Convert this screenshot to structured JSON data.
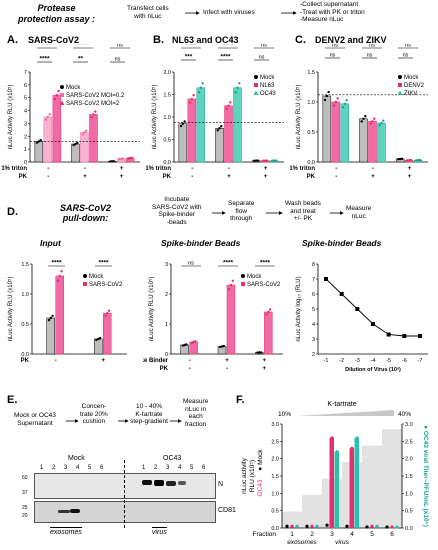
{
  "colors": {
    "black": "#000000",
    "gray": "#bdbdbd",
    "pink": "#f06ba5",
    "magenta": "#e6306e",
    "teal": "#2cbfa9",
    "teal_dark": "#1aa08c"
  },
  "header": {
    "assay_title": "Protease\nprotection assay :",
    "step1": "Transfect cells\nwith nLuc",
    "step2": "Infect with viruses",
    "step3": "-Collect supernatant\n-Treat with PK or triton\n-Measure nLuc"
  },
  "panels": {
    "A": {
      "letter": "A.",
      "title": "SARS-CoV2"
    },
    "B": {
      "letter": "B.",
      "title": "NL63 and OC43"
    },
    "C": {
      "letter": "C.",
      "title": "DENV2 and ZIKV"
    },
    "D": {
      "letter": "D."
    },
    "E": {
      "letter": "E."
    },
    "F": {
      "letter": "F."
    }
  },
  "pulldown": {
    "title": "SARS-CoV2\npull-down:",
    "step1": "Incubate\nSARS-CoV2 with\nSpike-binder\n-beads",
    "step2": "Separate\nflow\nthrough",
    "step3": "Wash beads\nand treat\n+/- PK",
    "step4": "Measure\nnLuc"
  },
  "fractionation": {
    "step1": "Mock or OC43\nSupernatant",
    "step2": "Concen-\ntrate 20%\ncushion",
    "step3": "10 - 40%\nK-tartrate\nstep-gradient",
    "step4": "Measure\nnLuc in\neach\nfraction"
  },
  "blot": {
    "mock": "Mock",
    "oc43": "OC43",
    "band_n": "N",
    "band_cd81": "CD81",
    "mw": [
      "60",
      "37",
      "25",
      "20"
    ],
    "lanes": [
      "1",
      "2",
      "3",
      "4",
      "5",
      "6",
      "1",
      "2",
      "3",
      "4",
      "5",
      "6"
    ],
    "exosomes": "exosomes",
    "virus": "virus"
  },
  "axis_labels": {
    "nluc": "nLuc Activity RLU (x10⁵)",
    "triton": "1% triton",
    "pk": "PK",
    "spike_binder": "Spike Binder",
    "log": "nLuc Activity log₁₀ (RLU)",
    "dilution": "Dilution of Virus (10ˣ)",
    "f_left": "nLuc activity\nRLU (x10⁵)",
    "f_left_mock": "● Mock",
    "f_left_oc43": "OC43",
    "f_right": "● OC43 viral Titer–PFU/mL (x10⁵)",
    "fraction": "Fraction",
    "ktartrate": "K-tartrate",
    "pct10": "10%",
    "pct40": "40%"
  },
  "signs": {
    "minus": "-",
    "plus": "+",
    "ns": "ns",
    "ssss": "****",
    "ss": "**"
  },
  "chart_data": [
    {
      "type": "bar",
      "id": "A",
      "title": "SARS-CoV2",
      "ylabel": "nLuc Activity RLU (x10⁵)",
      "ylim": [
        0,
        7
      ],
      "yticks": [
        0,
        1,
        2,
        3,
        4,
        5,
        6,
        7
      ],
      "groups": [
        {
          "triton": "-",
          "pk": "-"
        },
        {
          "triton": "-",
          "pk": "+"
        },
        {
          "triton": "+",
          "pk": "+"
        }
      ],
      "series": [
        {
          "name": "Mock",
          "values": [
            1.6,
            1.4,
            0.05
          ]
        },
        {
          "name": "SARS-CoV2 MOI=0.2",
          "values": [
            3.5,
            2.3,
            0.25
          ]
        },
        {
          "name": "SARS-CoV2 MOI=2",
          "values": [
            5.2,
            3.7,
            0.3
          ]
        }
      ],
      "reference_line": 1.6
    },
    {
      "type": "bar",
      "id": "B",
      "title": "NL63 and OC43",
      "ylabel": "nLuc Activity RLU (x10⁵)",
      "ylim": [
        0,
        2
      ],
      "yticks": [
        0.0,
        0.5,
        1.0,
        1.5,
        2.0
      ],
      "groups": [
        {
          "triton": "-",
          "pk": "-"
        },
        {
          "triton": "-",
          "pk": "+"
        },
        {
          "triton": "+",
          "pk": "+"
        }
      ],
      "series": [
        {
          "name": "Mock",
          "values": [
            0.85,
            0.75,
            0.03
          ]
        },
        {
          "name": "NL63",
          "values": [
            1.4,
            1.25,
            0.03
          ]
        },
        {
          "name": "OC43",
          "values": [
            1.65,
            1.65,
            0.03
          ]
        }
      ],
      "reference_line": 0.88
    },
    {
      "type": "bar",
      "id": "C",
      "title": "DENV2 and ZIKV",
      "ylabel": "nLuc Activity RLU (x10⁵)",
      "ylim": [
        0,
        1.5
      ],
      "yticks": [
        0.0,
        0.5,
        1.0,
        1.5
      ],
      "groups": [
        {
          "triton": "-",
          "pk": "-"
        },
        {
          "triton": "-",
          "pk": "+"
        },
        {
          "triton": "+",
          "pk": "+"
        }
      ],
      "series": [
        {
          "name": "Mock",
          "values": [
            1.1,
            0.72,
            0.05
          ]
        },
        {
          "name": "DENV2",
          "values": [
            1.0,
            0.68,
            0.03
          ]
        },
        {
          "name": "ZIKV",
          "values": [
            0.97,
            0.65,
            0.03
          ]
        }
      ],
      "reference_line": 1.12
    },
    {
      "type": "bar",
      "id": "D-input",
      "title": "Input",
      "ylabel": "nLuc Activity RLU (x10⁵)",
      "ylim": [
        0,
        1.5
      ],
      "yticks": [
        0.0,
        0.5,
        1.0,
        1.5
      ],
      "groups": [
        {
          "pk": "-"
        },
        {
          "pk": "+"
        }
      ],
      "series": [
        {
          "name": "Mock",
          "values": [
            0.6,
            0.25
          ]
        },
        {
          "name": "SARS-CoV2",
          "values": [
            1.3,
            0.68
          ]
        }
      ]
    },
    {
      "type": "bar",
      "id": "D-beads",
      "title": "Spike-binder Beads",
      "ylabel": "nLuc Activity RLU (x10⁵)",
      "ylim": [
        0,
        3
      ],
      "yticks": [
        0,
        1,
        2,
        3
      ],
      "groups": [
        {
          "spike_binder": "-",
          "pk": "-"
        },
        {
          "spike_binder": "+",
          "pk": "-"
        },
        {
          "spike_binder": "+",
          "pk": "+"
        }
      ],
      "series": [
        {
          "name": "Mock",
          "values": [
            0.3,
            0.25,
            0.05
          ]
        },
        {
          "name": "SARS-CoV2",
          "values": [
            0.4,
            2.3,
            1.4
          ]
        }
      ]
    },
    {
      "type": "line",
      "id": "D-dilution",
      "title": "Spike-binder Beads",
      "ylabel": "nLuc Activity log₁₀ (RLU)",
      "xlabel": "Dilution of Virus (10ˣ)",
      "x": [
        1,
        2,
        3,
        4,
        5,
        6,
        7
      ],
      "xticklabels": [
        "-1",
        "-2",
        "-3",
        "-4",
        "-5",
        "-6",
        "-7"
      ],
      "y": [
        7.0,
        6.0,
        5.0,
        4.0,
        3.3,
        3.2,
        3.2
      ],
      "ylim": [
        2,
        8
      ],
      "yticks": [
        2,
        3,
        4,
        5,
        6,
        7,
        8
      ]
    },
    {
      "type": "bar",
      "id": "F",
      "xlabel": "Fraction",
      "categories": [
        "1",
        "2",
        "3",
        "4",
        "5",
        "6"
      ],
      "ylim": [
        0,
        3
      ],
      "yticks": [
        0.0,
        0.5,
        1.0,
        1.5,
        2.0,
        2.5,
        3.0
      ],
      "y2lim": [
        0,
        3
      ],
      "y2ticks": [
        0.0,
        0.5,
        1.0,
        1.5,
        2.0,
        2.5,
        3.0
      ],
      "series": [
        {
          "name": "Mock",
          "values": [
            0.05,
            0.05,
            0.08,
            0.05,
            0.03,
            0.03
          ]
        },
        {
          "name": "OC43",
          "values": [
            0.05,
            0.05,
            2.6,
            2.3,
            0.05,
            0.03
          ]
        },
        {
          "name": "OC43 viral Titer",
          "axis": "right",
          "values": [
            0.05,
            0.05,
            2.2,
            2.6,
            0.05,
            0.03
          ]
        }
      ]
    }
  ]
}
